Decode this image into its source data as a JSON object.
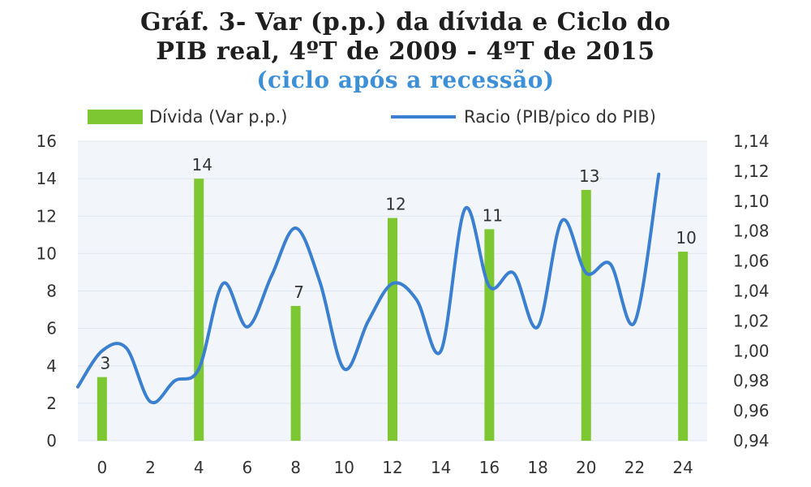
{
  "chart_data": {
    "type": "bar",
    "title_line1": "Gráf. 3- Var (p.p.) da dívida e Ciclo do",
    "title_line2": "PIB real, 4ºT de 2009 - 4ºT de 2015",
    "subtitle": "(ciclo após a recessão)",
    "x_ticks": [
      "0",
      "2",
      "4",
      "6",
      "8",
      "10",
      "12",
      "14",
      "16",
      "18",
      "20",
      "22",
      "24"
    ],
    "y_left_ticks": [
      "0",
      "2",
      "4",
      "6",
      "8",
      "10",
      "12",
      "14",
      "16"
    ],
    "y_right_ticks": [
      "0,94",
      "0,96",
      "0,98",
      "1,00",
      "1,02",
      "1,04",
      "1,06",
      "1,08",
      "1,10",
      "1,12",
      "1,14"
    ],
    "ylim_left": [
      0,
      16
    ],
    "ylim_right": [
      0.94,
      1.14
    ],
    "xlim": [
      -1,
      25
    ],
    "grid": true,
    "legend_position": "top",
    "series": [
      {
        "name": "Dívida (Var p.p.)",
        "kind": "bar",
        "axis": "left",
        "color": "#7dc832",
        "x": [
          0,
          4,
          8,
          12,
          16,
          20,
          24
        ],
        "values": [
          3.4,
          14,
          7.2,
          11.9,
          11.3,
          13.4,
          10.1
        ],
        "labels": [
          "3",
          "14",
          "7",
          "12",
          "11",
          "13",
          "10"
        ]
      },
      {
        "name": "Racio (PIB/pico do PIB)",
        "kind": "line",
        "axis": "right",
        "color": "#3a7fd0",
        "x": [
          -1,
          0,
          1,
          2,
          3,
          4,
          5,
          6,
          7,
          8,
          9,
          10,
          11,
          12,
          13,
          14,
          15,
          16,
          17,
          18,
          19,
          20,
          21,
          22,
          23
        ],
        "values": [
          0.976,
          1.0,
          1.002,
          0.966,
          0.98,
          0.988,
          1.045,
          1.016,
          1.05,
          1.082,
          1.046,
          0.988,
          1.02,
          1.045,
          1.034,
          1.0,
          1.095,
          1.043,
          1.052,
          1.016,
          1.087,
          1.052,
          1.058,
          1.019,
          1.118
        ]
      }
    ]
  },
  "colors": {
    "title": "#1f1f1f",
    "subtitle": "#3d8fd6",
    "plot_background": "#f2f6fb",
    "grid": "#dfe5ee",
    "axis_text": "#333333"
  }
}
